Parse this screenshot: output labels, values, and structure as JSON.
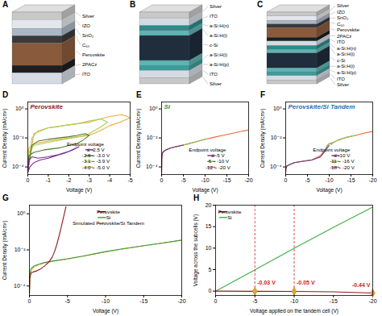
{
  "diagrams": [
    {
      "panel": "A",
      "layers": [
        {
          "label": "Silver",
          "color": "#c8c8c8"
        },
        {
          "label": "IZO",
          "color": "#e3e6ea"
        },
        {
          "label": "SnO₂",
          "color": "#a9b7c6"
        },
        {
          "label": "C₆₀",
          "color": "#3a3a3a"
        },
        {
          "label": "Perovskite",
          "color": "#8a5a3c"
        },
        {
          "label": "2PACz",
          "color": "#1e1e1e"
        },
        {
          "label": "ITO",
          "color": "#d5dbe3"
        }
      ]
    },
    {
      "panel": "B",
      "layers": [
        {
          "label": "Silver",
          "color": "#c8c8c8"
        },
        {
          "label": "ITO",
          "color": "#d5dbe3"
        },
        {
          "label": "a-Si:H(n)",
          "color": "#2e8b8b"
        },
        {
          "label": "a-Si:H(i)",
          "color": "#5fb3b3"
        },
        {
          "label": "c-Si",
          "color": "#1f2d3d"
        },
        {
          "label": "a-Si:H(i)",
          "color": "#5fb3b3"
        },
        {
          "label": "a-Si:H(p)",
          "color": "#3b9c9c"
        },
        {
          "label": "ITO",
          "color": "#d5dbe3"
        },
        {
          "label": "Silver",
          "color": "#c8c8c8"
        }
      ]
    },
    {
      "panel": "C",
      "layers": [
        {
          "label": "Silver",
          "color": "#c8c8c8"
        },
        {
          "label": "IZO",
          "color": "#e3e6ea"
        },
        {
          "label": "SnO₂",
          "color": "#a9b7c6"
        },
        {
          "label": "C₆₀",
          "color": "#3a3a3a"
        },
        {
          "label": "Perovskite",
          "color": "#8a5a3c"
        },
        {
          "label": "2PACz",
          "color": "#1e1e1e"
        },
        {
          "label": "ITO",
          "color": "#d5dbe3"
        },
        {
          "label": "a-Si:H(n)",
          "color": "#2e8b8b"
        },
        {
          "label": "a-Si:H(i)",
          "color": "#5fb3b3"
        },
        {
          "label": "c-Si",
          "color": "#1f2d3d"
        },
        {
          "label": "a-Si:H(i)",
          "color": "#5fb3b3"
        },
        {
          "label": "a-Si:H(p)",
          "color": "#3b9c9c"
        },
        {
          "label": "ITO",
          "color": "#d5dbe3"
        },
        {
          "label": "Silver",
          "color": "#c8c8c8"
        }
      ]
    }
  ],
  "chart_data": [
    {
      "panel": "D",
      "type": "line",
      "title": "Perovskite",
      "legend_title": "Endpoint voltage",
      "legend": "lower right",
      "log": "y",
      "grid": false,
      "x_label": "Voltage (V)",
      "y_label": "Current Density (mA/cm²)",
      "xlim": [
        0,
        -5
      ],
      "xticks": [
        0,
        -1,
        -2,
        -3,
        -4,
        -5
      ],
      "ylim": [
        3e-05,
        3
      ],
      "yticks": [
        {
          "value": 0.0001,
          "label": "10⁻⁴"
        },
        {
          "value": 0.01,
          "label": "10⁻²"
        },
        {
          "value": 1,
          "label": "10⁰"
        }
      ],
      "series": [
        {
          "name": "≤ -2.5 V",
          "color": "#7b2d8e",
          "x": [
            0,
            -0.05,
            -0.2,
            -0.5,
            -1,
            -1.5,
            -2,
            -2.5,
            -2.2,
            -1.8,
            -1.4,
            -1,
            -0.6,
            -0.3,
            -0.1,
            0
          ],
          "values": [
            4e-05,
            0.0003,
            0.0005,
            0.0004,
            0.0005,
            0.0007,
            0.0012,
            0.0025,
            0.0015,
            0.0009,
            0.0006,
            0.0004,
            0.0003,
            0.0002,
            0.0001,
            4e-05
          ]
        },
        {
          "name": "-2.6 ~ -3.0 V",
          "color": "#4a7a2a",
          "x": [
            0,
            -0.05,
            -0.3,
            -0.8,
            -1.5,
            -2,
            -2.4,
            -2.7,
            -3,
            -2.8,
            -2.4,
            -2,
            -1.5,
            -1,
            -0.5,
            -0.2,
            0
          ],
          "values": [
            5e-05,
            0.0006,
            0.001,
            0.0015,
            0.002,
            0.003,
            0.004,
            0.007,
            0.015,
            0.02,
            0.015,
            0.012,
            0.01,
            0.008,
            0.006,
            0.003,
            5e-05
          ]
        },
        {
          "name": "-3.1 ~ -3.9 V",
          "color": "#a8d050",
          "x": [
            0,
            -0.05,
            -0.3,
            -1,
            -1.8,
            -2.5,
            -3,
            -3.5,
            -3.9,
            -3.6,
            -3,
            -2.5,
            -2,
            -1.5,
            -1,
            -0.5,
            -0.2,
            0
          ],
          "values": [
            5e-05,
            0.001,
            0.003,
            0.005,
            0.008,
            0.012,
            0.02,
            0.05,
            0.12,
            0.2,
            0.15,
            0.1,
            0.08,
            0.06,
            0.05,
            0.03,
            0.01,
            5e-05
          ]
        },
        {
          "name": "-4.0 ~ -5.0 V",
          "color": "#f2a93b",
          "x": [
            0,
            -0.05,
            -0.3,
            -1,
            -2,
            -3,
            -3.5,
            -4,
            -4.5,
            -5,
            -4.6,
            -4,
            -3.5,
            -3,
            -2,
            -1,
            -0.3,
            0
          ],
          "values": [
            5e-05,
            0.002,
            0.004,
            0.006,
            0.01,
            0.015,
            0.03,
            0.07,
            0.12,
            0.25,
            0.4,
            0.3,
            0.2,
            0.12,
            0.08,
            0.05,
            0.02,
            5e-05
          ]
        }
      ]
    },
    {
      "panel": "E",
      "type": "line",
      "title": "Si",
      "legend_title": "Endpoint voltage",
      "legend": "lower right",
      "log": "y",
      "grid": false,
      "x_label": "Voltage (V)",
      "y_label": "Current Density (mA/cm²)",
      "xlim": [
        0,
        -20
      ],
      "xticks": [
        0,
        -5,
        -10,
        -15,
        -20
      ],
      "ylim": [
        3e-05,
        3
      ],
      "yticks": [
        {
          "value": 0.0001,
          "label": "10⁻⁴"
        },
        {
          "value": 0.01,
          "label": "10⁻²"
        },
        {
          "value": 1,
          "label": "10⁰"
        }
      ],
      "series": [
        {
          "name": "≤ -5 V",
          "color": "#7b2d8e",
          "x": [
            0,
            -0.05,
            -0.2,
            -0.5,
            -1,
            -2,
            -3,
            -4,
            -5
          ],
          "values": [
            4e-05,
            0.0004,
            0.0009,
            0.0012,
            0.0015,
            0.002,
            0.0024,
            0.0028,
            0.0032
          ]
        },
        {
          "name": "-6 ~ -10 V",
          "color": "#8cc152",
          "x": [
            0,
            -0.05,
            -0.2,
            -0.5,
            -1,
            -2,
            -4,
            -6,
            -8,
            -10
          ],
          "values": [
            4e-05,
            0.0004,
            0.0009,
            0.0012,
            0.0015,
            0.002,
            0.0027,
            0.0038,
            0.0055,
            0.008
          ]
        },
        {
          "name": "-12 ~ -20 V",
          "color": "#e8673a",
          "x": [
            0,
            -0.05,
            -0.2,
            -0.5,
            -1,
            -2,
            -4,
            -6,
            -8,
            -10,
            -12,
            -14,
            -16,
            -18,
            -20
          ],
          "values": [
            4e-05,
            0.0004,
            0.0009,
            0.0012,
            0.0015,
            0.002,
            0.0027,
            0.0038,
            0.0055,
            0.008,
            0.011,
            0.015,
            0.02,
            0.027,
            0.035
          ]
        }
      ]
    },
    {
      "panel": "F",
      "type": "line",
      "title": "Perovskite/Si Tandem",
      "legend_title": "Endpoint voltage",
      "legend": "lower right",
      "log": "y",
      "grid": false,
      "x_label": "Voltage (V)",
      "y_label": "Current Density (mA/cm²)",
      "xlim": [
        0,
        -20
      ],
      "xticks": [
        0,
        -5,
        -10,
        -15,
        -20
      ],
      "ylim": [
        3e-05,
        3
      ],
      "yticks": [
        {
          "value": 0.0001,
          "label": "10⁻⁴"
        },
        {
          "value": 0.01,
          "label": "10⁻²"
        },
        {
          "value": 1,
          "label": "10⁰"
        }
      ],
      "series": [
        {
          "name": "≤ -10 V",
          "color": "#7b2d8e",
          "x": [
            0,
            -0.05,
            -0.3,
            -1,
            -2,
            -4,
            -6,
            -8,
            -9,
            -9.5,
            -10
          ],
          "values": [
            4e-05,
            8e-05,
            0.00012,
            0.00015,
            0.0002,
            0.00025,
            0.0003,
            0.0005,
            0.0012,
            0.002,
            0.003
          ]
        },
        {
          "name": "-11 ~ -16 V",
          "color": "#8cc152",
          "x": [
            0,
            -0.05,
            -0.3,
            -1,
            -2,
            -4,
            -6,
            -8,
            -9,
            -9.5,
            -10,
            -10.5,
            -11,
            -12,
            -13,
            -14,
            -15,
            -16
          ],
          "values": [
            4e-05,
            8e-05,
            0.00012,
            0.00015,
            0.0002,
            0.00025,
            0.0003,
            0.0005,
            0.0012,
            0.003,
            0.004,
            0.0035,
            0.005,
            0.007,
            0.009,
            0.011,
            0.013,
            0.015
          ]
        },
        {
          "name": "-18 ~ -20 V",
          "color": "#e8673a",
          "x": [
            0,
            -0.05,
            -0.3,
            -1,
            -2,
            -4,
            -6,
            -8,
            -9,
            -9.5,
            -10,
            -11,
            -12,
            -14,
            -16,
            -18,
            -20
          ],
          "values": [
            4e-05,
            8e-05,
            0.00012,
            0.00015,
            0.0002,
            0.00025,
            0.0003,
            0.0006,
            0.0015,
            0.0025,
            0.004,
            0.005,
            0.007,
            0.011,
            0.015,
            0.021,
            0.028
          ]
        }
      ]
    },
    {
      "panel": "G",
      "type": "line",
      "legend": "upper right",
      "log": "y",
      "grid": false,
      "x_label": "Voltage (V)",
      "y_label": "Current Density (mA/cm²)",
      "xlim": [
        0,
        -20
      ],
      "xticks": [
        0,
        -5,
        -10,
        -15,
        -20
      ],
      "ylim": [
        3e-05,
        3
      ],
      "yticks": [
        {
          "value": 0.0001,
          "label": "10⁻⁴"
        },
        {
          "value": 0.01,
          "label": "10⁻²"
        },
        {
          "value": 1,
          "label": "10⁰"
        }
      ],
      "series": [
        {
          "name": "Perovskite",
          "color": "#8b1a1a",
          "x": [
            0,
            -0.05,
            -0.2,
            -0.5,
            -1,
            -1.5,
            -2,
            -2.5,
            -3,
            -3.3,
            -3.6,
            -3.9,
            -4.2,
            -4.5,
            -4.8
          ],
          "values": [
            4e-05,
            0.0003,
            0.0005,
            0.0006,
            0.0007,
            0.0009,
            0.0013,
            0.002,
            0.004,
            0.008,
            0.02,
            0.06,
            0.2,
            0.7,
            2.5
          ]
        },
        {
          "name": "Si",
          "color": "#3a9a3a",
          "x": [
            0,
            -0.05,
            -0.2,
            -0.5,
            -1,
            -2,
            -3,
            -5,
            -7,
            -10,
            -12,
            -15,
            -18,
            -20
          ],
          "values": [
            4e-05,
            0.0004,
            0.0009,
            0.0012,
            0.0015,
            0.002,
            0.0024,
            0.0032,
            0.0045,
            0.008,
            0.011,
            0.017,
            0.026,
            0.035
          ]
        },
        {
          "name": "Simulated Perovskite/Si Tandem",
          "color": "#f0a030",
          "line_style": "dashed",
          "x": [
            0,
            -0.1,
            -0.3,
            -0.6,
            -1,
            -2,
            -3,
            -5,
            -7,
            -10,
            -12,
            -15,
            -18,
            -20
          ],
          "values": [
            4e-05,
            0.0003,
            0.0008,
            0.0011,
            0.0014,
            0.0019,
            0.0023,
            0.0031,
            0.0044,
            0.0078,
            0.0108,
            0.0167,
            0.0255,
            0.034
          ]
        }
      ]
    },
    {
      "panel": "H",
      "type": "line",
      "legend": "upper left",
      "grid": false,
      "x_label": "Voltage applied on the tandem cell (V)",
      "y_label": "Voltage across the subcells (V)",
      "xlim": [
        0,
        -20
      ],
      "xticks": [
        0,
        -5,
        -10,
        -15,
        -20
      ],
      "ylim": [
        -1,
        20
      ],
      "yticks": [
        0,
        5,
        10,
        15,
        20
      ],
      "series": [
        {
          "name": "Perovskite",
          "color": "#8b1a1a",
          "x": [
            0,
            -5,
            -10,
            -15,
            -20
          ],
          "values": [
            0,
            -0.03,
            -0.05,
            -0.15,
            -0.44
          ]
        },
        {
          "name": "Si",
          "color": "#3cb043",
          "x": [
            0,
            -5,
            -10,
            -15,
            -20
          ],
          "values": [
            0,
            4.97,
            9.95,
            14.85,
            19.56
          ]
        }
      ],
      "annotations": [
        {
          "x": -5,
          "y": -0.03,
          "text": "-0.03 V"
        },
        {
          "x": -10,
          "y": -0.05,
          "text": "-0.05 V"
        },
        {
          "x": -20,
          "y": -0.44,
          "text": "-0.44 V"
        }
      ]
    }
  ]
}
